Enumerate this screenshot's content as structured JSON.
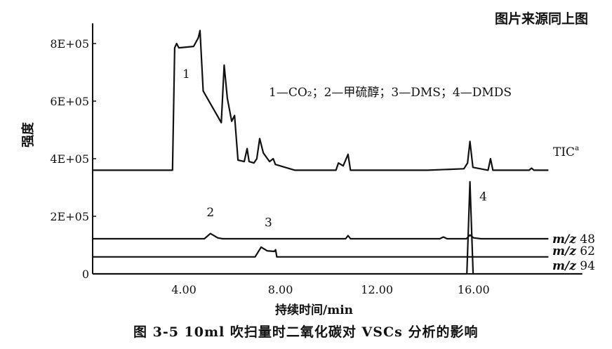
{
  "source_note": "图片来源同上图",
  "caption": "图 3-5   10ml 吹扫量时二氧化碳对 VSCs 分析的影响",
  "chart_data": {
    "type": "line",
    "title": "",
    "xlabel": "持续时间/min",
    "ylabel": "强度",
    "xlim": [
      0.2,
      20.5
    ],
    "ylim": [
      0,
      870000
    ],
    "xticks": [
      4,
      8,
      12,
      16
    ],
    "xtick_labels": [
      "4.00",
      "8.00",
      "12.00",
      "16.00"
    ],
    "yticks": [
      0,
      200000,
      400000,
      600000,
      800000
    ],
    "ytick_labels": [
      "0",
      "2E+05",
      "4E+05",
      "6E+05",
      "8E+05"
    ],
    "grid": false,
    "legend_text": "1—CO₂；2—甲硫醇；3—DMS；4—DMDS",
    "peak_labels": [
      {
        "label": "1",
        "x": 4.1,
        "y": 680000
      },
      {
        "label": "2",
        "x": 5.1,
        "y": 200000
      },
      {
        "label": "3",
        "x": 7.5,
        "y": 165000
      },
      {
        "label": "4",
        "x": 16.4,
        "y": 255000
      }
    ],
    "series": [
      {
        "name": "TIC",
        "name_sup": "a",
        "x": [
          0.22,
          3.53,
          3.62,
          3.7,
          3.79,
          4.4,
          4.6,
          4.67,
          4.8,
          5.55,
          5.67,
          5.8,
          5.98,
          6.1,
          6.24,
          6.5,
          6.62,
          6.7,
          6.9,
          7.02,
          7.14,
          7.29,
          7.55,
          7.7,
          7.79,
          8.6,
          10.3,
          10.4,
          10.6,
          10.8,
          10.9,
          14.1,
          15.6,
          15.75,
          15.85,
          15.97,
          16.6,
          16.7,
          16.8,
          18.3,
          18.4,
          18.5,
          19.1
        ],
        "y": [
          360000,
          360000,
          785000,
          800000,
          785000,
          790000,
          820000,
          845000,
          635000,
          525000,
          725000,
          610000,
          530000,
          550000,
          395000,
          390000,
          435000,
          390000,
          385000,
          400000,
          470000,
          420000,
          390000,
          400000,
          380000,
          360000,
          360000,
          385000,
          375000,
          415000,
          360000,
          360000,
          365000,
          385000,
          460000,
          370000,
          360000,
          400000,
          360000,
          360000,
          367000,
          360000,
          360000
        ]
      },
      {
        "name": "m/z 48",
        "x": [
          0.22,
          4.85,
          5.1,
          5.4,
          5.6,
          10.7,
          10.8,
          10.9,
          14.6,
          14.75,
          14.9,
          15.7,
          15.85,
          16.0,
          16.3,
          19.1
        ],
        "y": [
          122000,
          122000,
          140000,
          125000,
          122000,
          122000,
          133000,
          122000,
          122000,
          128000,
          122000,
          122000,
          135000,
          125000,
          122000,
          122000
        ]
      },
      {
        "name": "m/z 62",
        "x": [
          0.22,
          6.95,
          7.2,
          7.45,
          7.75,
          7.8,
          7.85,
          19.1
        ],
        "y": [
          59000,
          59000,
          93000,
          80000,
          78000,
          84000,
          59000,
          59000
        ]
      },
      {
        "name": "m/z 94",
        "x": [
          0.22,
          15.72,
          15.85,
          15.98,
          20.5
        ],
        "y": [
          0,
          0,
          320000,
          0,
          0
        ]
      }
    ]
  }
}
